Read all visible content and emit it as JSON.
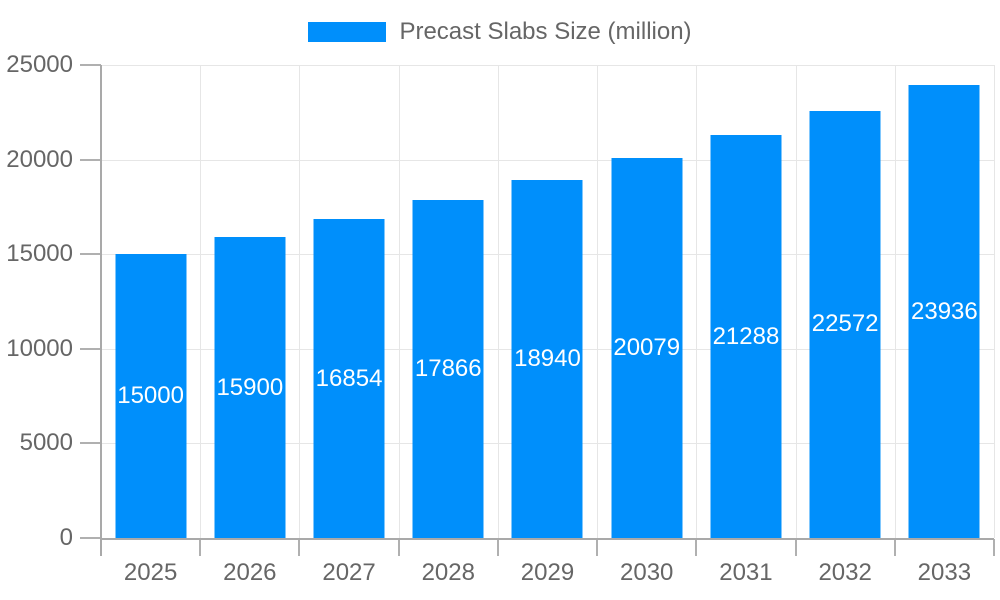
{
  "chart_data": {
    "type": "bar",
    "title": "Precast Slabs Size (million)",
    "categories": [
      "2025",
      "2026",
      "2027",
      "2028",
      "2029",
      "2030",
      "2031",
      "2032",
      "2033"
    ],
    "values": [
      15000,
      15900,
      16854,
      17866,
      18940,
      20079,
      21288,
      22572,
      23936
    ],
    "xlabel": "",
    "ylabel": "",
    "ylim": [
      0,
      25000
    ],
    "yticks": [
      0,
      5000,
      10000,
      15000,
      20000,
      25000
    ],
    "grid": "both",
    "legend_position": "top-center",
    "value_labels": "centered-inside-bars",
    "colors": {
      "bar": "#008FFB",
      "value_label": "#FFFFFF",
      "axis_text": "#666666",
      "grid": "#E6E6E6",
      "axis_line": "#A9A9A9",
      "tick": "#B0B0B0",
      "background": "#FFFFFF"
    }
  },
  "legend": {
    "label": "Precast Slabs Size (million)"
  }
}
